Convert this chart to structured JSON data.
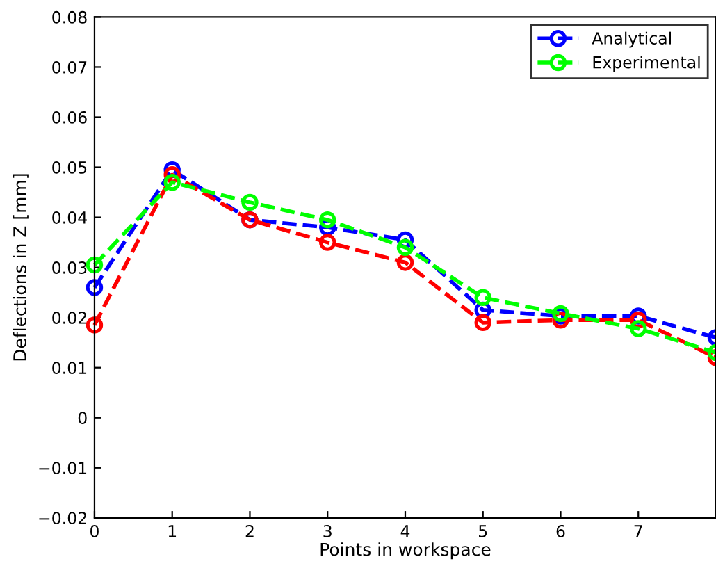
{
  "chart_data": {
    "type": "line",
    "xlabel": "Points in workspace",
    "ylabel": "Deflections in Z [mm]",
    "x": [
      0,
      1,
      2,
      3,
      4,
      5,
      6,
      7,
      8
    ],
    "series": [
      {
        "name": "Analytical",
        "color": "#0000ff",
        "values": [
          0.026,
          0.0495,
          0.0395,
          0.038,
          0.0355,
          0.0215,
          0.0203,
          0.0203,
          0.016
        ]
      },
      {
        "color": "#ff0000",
        "values": [
          0.0185,
          0.0485,
          0.0395,
          0.035,
          0.031,
          0.019,
          0.0195,
          0.0195,
          0.012
        ]
      },
      {
        "name": "Experimental",
        "color": "#00ff00",
        "values": [
          0.0305,
          0.047,
          0.043,
          0.0395,
          0.034,
          0.024,
          0.0208,
          0.0178,
          0.013
        ]
      }
    ],
    "xlim": [
      0,
      8
    ],
    "xticks": [
      0,
      1,
      2,
      3,
      4,
      5,
      6,
      7
    ],
    "ylim": [
      -0.02,
      0.08
    ],
    "yticks": [
      {
        "value": -0.02,
        "label": "−0.02"
      },
      {
        "value": -0.01,
        "label": "−0.01"
      },
      0,
      0.01,
      0.02,
      0.03,
      0.04,
      0.05,
      0.06,
      0.07,
      0.08
    ],
    "marker": "circle",
    "line_style": "dashed",
    "legend": "top right",
    "grid": false
  }
}
